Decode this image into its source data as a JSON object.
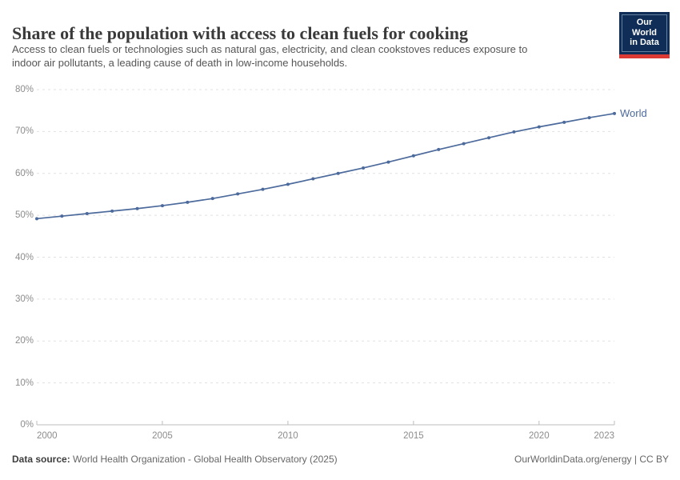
{
  "header": {
    "title": "Share of the population with access to clean fuels for cooking",
    "subtitle_line1": "Access to clean fuels or technologies such as natural gas, electricity, and clean cookstoves reduces exposure to",
    "subtitle_line2": "indoor air pollutants, a leading cause of death in low-income households.",
    "logo": {
      "line1": "Our World",
      "line2": "in Data"
    }
  },
  "chart_data": {
    "type": "line",
    "title": "Share of the population with access to clean fuels for cooking",
    "x": [
      2000,
      2001,
      2002,
      2003,
      2004,
      2005,
      2006,
      2007,
      2008,
      2009,
      2010,
      2011,
      2012,
      2013,
      2014,
      2015,
      2016,
      2017,
      2018,
      2019,
      2020,
      2021,
      2022,
      2023
    ],
    "series": [
      {
        "name": "World",
        "color": "#4c6a9c",
        "values": [
          49.2,
          49.8,
          50.4,
          51.0,
          51.6,
          52.3,
          53.1,
          54.0,
          55.1,
          56.2,
          57.4,
          58.7,
          60.0,
          61.3,
          62.7,
          64.2,
          65.7,
          67.1,
          68.5,
          69.9,
          71.1,
          72.2,
          73.3,
          74.3
        ]
      }
    ],
    "xlabel": "",
    "ylabel": "",
    "ylim": [
      0,
      80
    ],
    "xlim": [
      2000,
      2023
    ],
    "yticks": [
      0,
      10,
      20,
      30,
      40,
      50,
      60,
      70,
      80
    ],
    "ytick_labels": [
      "0%",
      "10%",
      "20%",
      "30%",
      "40%",
      "50%",
      "60%",
      "70%",
      "80%"
    ],
    "xticks": [
      2000,
      2005,
      2010,
      2015,
      2020,
      2023
    ],
    "xtick_labels": [
      "2000",
      "2005",
      "2010",
      "2015",
      "2020",
      "2023"
    ],
    "grid": "horizontal dashed gridlines, solid baseline at 0%",
    "legend_position": "label at end of line",
    "colors": {
      "gridline": "#e1e1e1",
      "axis": "#bdbdbd",
      "tick_text": "#8c8c8c"
    }
  },
  "footer": {
    "datasource_label": "Data source:",
    "datasource_text": " World Health Organization - Global Health Observatory (2025)",
    "credit": "OurWorldinData.org/energy | CC BY"
  }
}
